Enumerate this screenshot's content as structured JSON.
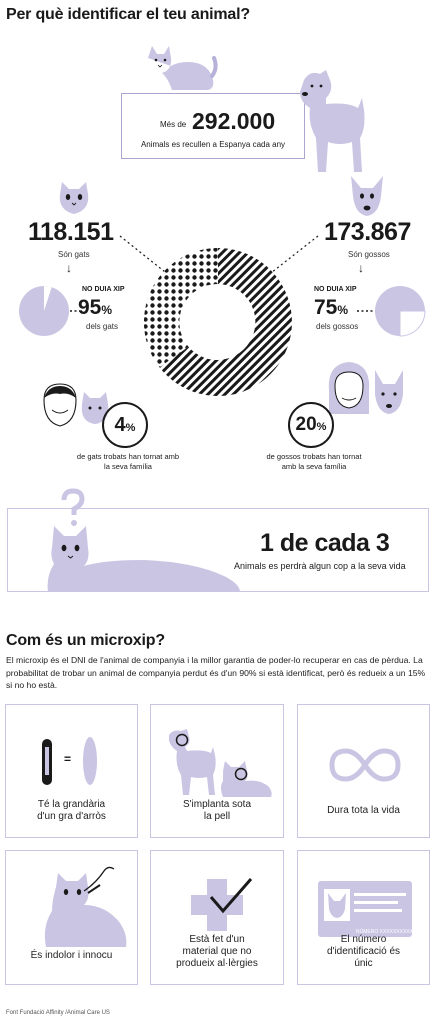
{
  "section1": {
    "title": "Per què identificar el teu animal?",
    "total": {
      "prefix": "Més de",
      "value": "292.000",
      "caption": "Animals es recullen a Espanya cada any"
    },
    "cats": {
      "count": "118.151",
      "count_label": "Són gats",
      "no_chip_label": "NO DUIA XIP",
      "no_chip_value": "95",
      "no_chip_unit": "%",
      "no_chip_caption": "dels gats",
      "returned_value": "4",
      "returned_unit": "%",
      "returned_caption": "de gats trobats han tornat amb la seva família"
    },
    "dogs": {
      "count": "173.867",
      "count_label": "Són gossos",
      "no_chip_label": "NO DUIA XIP",
      "no_chip_value": "75",
      "no_chip_unit": "%",
      "no_chip_caption": "dels gossos",
      "returned_value": "20",
      "returned_unit": "%",
      "returned_caption": "de gossos trobats han tornat amb la seva família"
    },
    "lost": {
      "value": "1 de cada 3",
      "caption": "Animals es perdrà algun cop a la seva vida"
    }
  },
  "section2": {
    "title": "Com és un microxip?",
    "intro": "El microxip és el DNI de l'animal de companyia i la millor garantia de poder-lo recuperar en cas de pèrdua. La probabilitat de trobar un animal de companyia perdut és d'un 90% si està identificat, però és redueix a un 15% si no ho està.",
    "cards": [
      {
        "caption": "Té la grandària d'un gra d'arròs",
        "icon": "rice-grain-icon"
      },
      {
        "caption": "S'implanta sota la pell",
        "icon": "implant-icon"
      },
      {
        "caption": "Dura tota la vida",
        "icon": "infinity-icon"
      },
      {
        "caption": "És indolor i innocu",
        "icon": "painless-icon"
      },
      {
        "caption": "Està fet d'un material que no produeix al·lèrgies",
        "icon": "hypoallergenic-icon"
      },
      {
        "caption": "El número d'identificació és únic",
        "icon": "id-card-icon"
      }
    ],
    "equals_sign": "=",
    "id_card_text": "NÚMERO XXXXXXXXXXX"
  },
  "footer": {
    "source": "Font Fundació Affinity /Animal Care US"
  },
  "colors": {
    "accent": "#c9c5e3",
    "text": "#1a1a1a"
  }
}
